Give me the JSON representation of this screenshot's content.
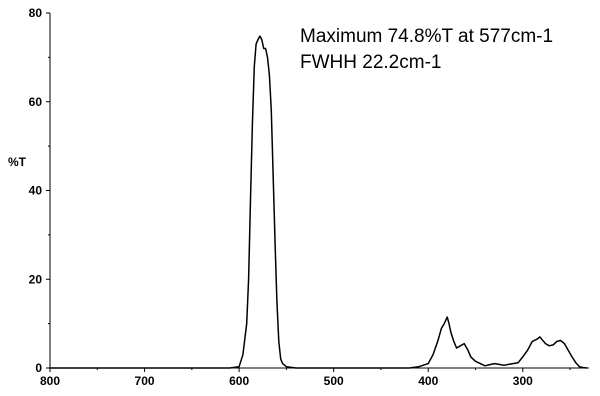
{
  "chart_data": {
    "type": "line",
    "title": "",
    "xlabel": "",
    "ylabel": "%T",
    "xlim": [
      800,
      230
    ],
    "ylim": [
      0,
      80
    ],
    "x_reversed": true,
    "grid": false,
    "xticks": [
      800,
      700,
      600,
      500,
      400,
      300
    ],
    "yticks": [
      0,
      20,
      40,
      60,
      80
    ],
    "annotations": [
      "Maximum 74.8%T at 577cm-1",
      "FWHH 22.2cm-1"
    ],
    "series": [
      {
        "color": "#000000",
        "x": [
          800,
          610,
          600,
          596,
          592,
          590,
          588,
          586,
          584,
          582,
          580,
          578,
          576,
          574,
          572,
          570,
          568,
          566,
          564,
          562,
          560,
          558,
          556,
          554,
          550,
          540,
          500,
          450,
          420,
          410,
          400,
          395,
          390,
          386,
          383,
          380,
          378,
          376,
          373,
          370,
          366,
          362,
          358,
          355,
          350,
          345,
          340,
          336,
          330,
          325,
          320,
          315,
          305,
          300,
          295,
          290,
          285,
          282,
          280,
          276,
          272,
          268,
          264,
          260,
          256,
          252,
          248,
          244,
          240,
          236,
          232
        ],
        "y": [
          0,
          0,
          0.3,
          3,
          10,
          20,
          38,
          55,
          68,
          73,
          74,
          74.8,
          74,
          72,
          72,
          70,
          66,
          58,
          43,
          28,
          15,
          6,
          2,
          1,
          0.3,
          0,
          0,
          0,
          0,
          0.3,
          1,
          3,
          6,
          9,
          10,
          11.5,
          10,
          8,
          6,
          4.5,
          5,
          5.5,
          4,
          2.5,
          1.5,
          1,
          0.5,
          0.7,
          1,
          0.8,
          0.6,
          0.8,
          1.2,
          2.5,
          4,
          6,
          6.5,
          7,
          6.5,
          5.5,
          5,
          5.2,
          6,
          6.2,
          5.5,
          4,
          2.5,
          1.2,
          0.3,
          0.1,
          0
        ]
      }
    ]
  }
}
